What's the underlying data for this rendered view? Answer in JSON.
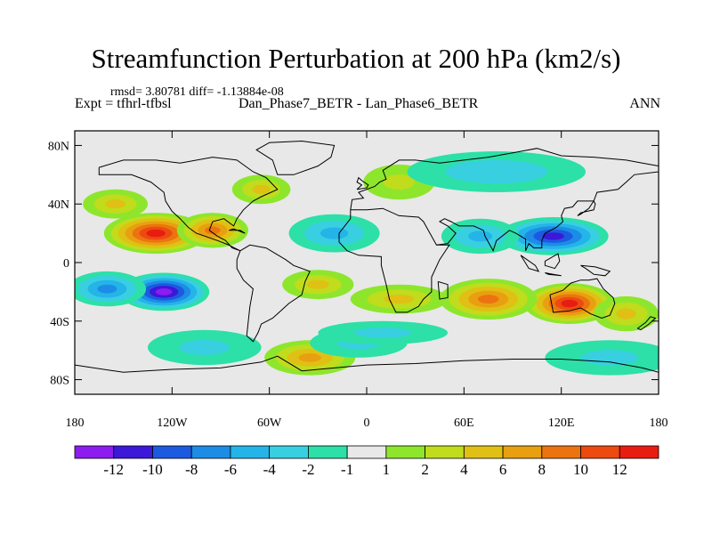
{
  "header": {
    "title": "Streamfunction Perturbation at 200 hPa (km2/s)",
    "stats": "rmsd= 3.80781 diff= -1.13884e-08",
    "expt": "Expt = tfhrl-tfbsl",
    "subtitle": "Dan_Phase7_BETR - Lan_Phase6_BETR",
    "season": "ANN"
  },
  "chart_data": {
    "type": "heatmap",
    "title": "Streamfunction Perturbation at 200 hPa (km2/s)",
    "xlim": [
      -180,
      180
    ],
    "ylim": [
      -90,
      90
    ],
    "x_ticks": [
      {
        "value": -180,
        "label": "180"
      },
      {
        "value": -120,
        "label": "120W"
      },
      {
        "value": -60,
        "label": "60W"
      },
      {
        "value": 0,
        "label": "0"
      },
      {
        "value": 60,
        "label": "60E"
      },
      {
        "value": 120,
        "label": "120E"
      },
      {
        "value": 180,
        "label": "180"
      }
    ],
    "y_ticks": [
      {
        "value": 80,
        "label": "80N"
      },
      {
        "value": 40,
        "label": "40N"
      },
      {
        "value": 0,
        "label": "0"
      },
      {
        "value": -40,
        "label": "40S"
      },
      {
        "value": -80,
        "label": "80S"
      }
    ],
    "colorbar": {
      "labels": [
        "-12",
        "-10",
        "-8",
        "-6",
        "-4",
        "-2",
        "-1",
        "1",
        "2",
        "4",
        "6",
        "8",
        "10",
        "12"
      ],
      "colors": [
        "#8c1cf0",
        "#3c18d8",
        "#1c5ae0",
        "#1c8ce6",
        "#24b4e8",
        "#38d0e0",
        "#2ce0a8",
        "#e8e8e8",
        "#8ee62c",
        "#c0dc1c",
        "#e0c014",
        "#e8a010",
        "#ec7410",
        "#ec4a10",
        "#e81c10"
      ]
    },
    "centers": [
      {
        "lon": -130,
        "lat": 20,
        "value": 12,
        "rx": 32,
        "ry": 14
      },
      {
        "lon": -95,
        "lat": 22,
        "value": 8,
        "rx": 22,
        "ry": 12
      },
      {
        "lon": -155,
        "lat": 40,
        "value": 4,
        "rx": 20,
        "ry": 10
      },
      {
        "lon": -65,
        "lat": 50,
        "value": 4,
        "rx": 18,
        "ry": 10
      },
      {
        "lon": -30,
        "lat": -15,
        "value": 4,
        "rx": 22,
        "ry": 10
      },
      {
        "lon": 20,
        "lat": -25,
        "value": 4,
        "rx": 30,
        "ry": 10
      },
      {
        "lon": 125,
        "lat": -28,
        "value": 12,
        "rx": 28,
        "ry": 14
      },
      {
        "lon": 75,
        "lat": -25,
        "value": 8,
        "rx": 30,
        "ry": 14
      },
      {
        "lon": 160,
        "lat": -35,
        "value": 4,
        "rx": 20,
        "ry": 12
      },
      {
        "lon": -35,
        "lat": -65,
        "value": 6,
        "rx": 28,
        "ry": 12
      },
      {
        "lon": 20,
        "lat": 55,
        "value": 2,
        "rx": 22,
        "ry": 12
      },
      {
        "lon": -125,
        "lat": -20,
        "value": -12,
        "rx": 28,
        "ry": 13
      },
      {
        "lon": -160,
        "lat": -18,
        "value": -6,
        "rx": 24,
        "ry": 12
      },
      {
        "lon": -20,
        "lat": 20,
        "value": -4,
        "rx": 28,
        "ry": 13
      },
      {
        "lon": 115,
        "lat": 18,
        "value": -10,
        "rx": 34,
        "ry": 13
      },
      {
        "lon": 70,
        "lat": 18,
        "value": -4,
        "rx": 24,
        "ry": 12
      },
      {
        "lon": 80,
        "lat": 62,
        "value": -3,
        "rx": 55,
        "ry": 14
      },
      {
        "lon": -5,
        "lat": -55,
        "value": -2,
        "rx": 30,
        "ry": 10
      },
      {
        "lon": -100,
        "lat": -58,
        "value": -2,
        "rx": 35,
        "ry": 12
      },
      {
        "lon": 150,
        "lat": -65,
        "value": -2,
        "rx": 40,
        "ry": 12
      },
      {
        "lon": 10,
        "lat": -48,
        "value": -2,
        "rx": 40,
        "ry": 8
      }
    ]
  }
}
